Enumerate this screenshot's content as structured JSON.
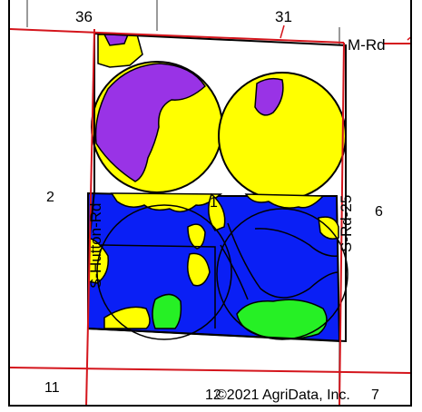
{
  "map": {
    "section_labels": {
      "nw": "36",
      "ne": "31",
      "west": "2",
      "center": "1",
      "east": "6",
      "sw": "11",
      "s": "12",
      "se": "7"
    },
    "roads": {
      "north": "M-Rd",
      "west": "S-Hutton-Rd",
      "east": "S-Rd-25"
    },
    "copyright": "©2021 AgriData, Inc.",
    "colors": {
      "road": "#d4151c",
      "boundary": "#000000",
      "purple": "#9933e6",
      "yellow": "#ffff00",
      "blue": "#0a1ff5",
      "green": "#26f025",
      "gray_line": "#9a9a9a"
    }
  }
}
